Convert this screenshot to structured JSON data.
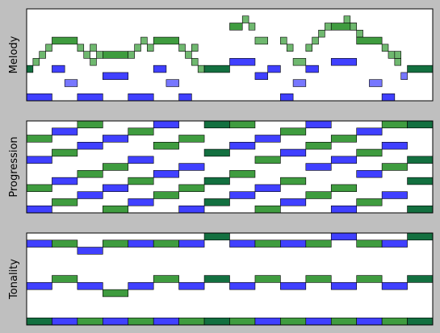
{
  "chart_data": [
    {
      "type": "pianoroll",
      "ylabel": "Melody",
      "xlim": [
        0,
        32
      ],
      "ylim": [
        0,
        13
      ],
      "notes": [
        {
          "x": 0,
          "w": 2,
          "p": 0,
          "c": "blue"
        },
        {
          "x": 0,
          "w": 0.5,
          "p": 4,
          "c": "darkgreen"
        },
        {
          "x": 0.5,
          "w": 0.5,
          "p": 5,
          "c": "lightgreen"
        },
        {
          "x": 1,
          "w": 0.5,
          "p": 6,
          "c": "lightgreen"
        },
        {
          "x": 1.5,
          "w": 0.5,
          "p": 7,
          "c": "lightgreen"
        },
        {
          "x": 2,
          "w": 2,
          "p": 8,
          "c": "green"
        },
        {
          "x": 2,
          "w": 1,
          "p": 4,
          "c": "blue"
        },
        {
          "x": 3,
          "w": 1,
          "p": 2,
          "c": "lightblue"
        },
        {
          "x": 4,
          "w": 2,
          "p": 0,
          "c": "blue"
        },
        {
          "x": 4,
          "w": 0.5,
          "p": 7,
          "c": "lightgreen"
        },
        {
          "x": 4.5,
          "w": 0.5,
          "p": 6,
          "c": "lightgreen"
        },
        {
          "x": 5,
          "w": 0.5,
          "p": 5,
          "c": "lightgreen"
        },
        {
          "x": 5,
          "w": 0.5,
          "p": 7,
          "c": "lightgreen"
        },
        {
          "x": 5.5,
          "w": 0.5,
          "p": 6,
          "c": "lightgreen"
        },
        {
          "x": 6,
          "w": 2,
          "p": 6,
          "c": "green"
        },
        {
          "x": 6,
          "w": 2,
          "p": 3,
          "c": "blue"
        },
        {
          "x": 8,
          "w": 2,
          "p": 0,
          "c": "blue"
        },
        {
          "x": 8,
          "w": 0.5,
          "p": 6,
          "c": "lightgreen"
        },
        {
          "x": 8.5,
          "w": 0.5,
          "p": 7,
          "c": "lightgreen"
        },
        {
          "x": 9,
          "w": 0.5,
          "p": 8,
          "c": "lightgreen"
        },
        {
          "x": 9.5,
          "w": 0.5,
          "p": 7,
          "c": "lightgreen"
        },
        {
          "x": 10,
          "w": 2,
          "p": 8,
          "c": "green"
        },
        {
          "x": 10,
          "w": 1,
          "p": 4,
          "c": "blue"
        },
        {
          "x": 11,
          "w": 1,
          "p": 2,
          "c": "lightblue"
        },
        {
          "x": 12,
          "w": 1,
          "p": 0,
          "c": "blue"
        },
        {
          "x": 12,
          "w": 0.5,
          "p": 7,
          "c": "lightgreen"
        },
        {
          "x": 12.5,
          "w": 0.5,
          "p": 6,
          "c": "lightgreen"
        },
        {
          "x": 13,
          "w": 0.5,
          "p": 5,
          "c": "lightgreen"
        },
        {
          "x": 13,
          "w": 0.5,
          "p": 7,
          "c": "lightgreen"
        },
        {
          "x": 13.5,
          "w": 0.5,
          "p": 4,
          "c": "lightgreen"
        },
        {
          "x": 14,
          "w": 2,
          "p": 4,
          "c": "darkgreen"
        },
        {
          "x": 16,
          "w": 2,
          "p": 5,
          "c": "blue"
        },
        {
          "x": 16,
          "w": 1,
          "p": 10,
          "c": "green"
        },
        {
          "x": 17,
          "w": 0.5,
          "p": 11,
          "c": "lightgreen"
        },
        {
          "x": 17.5,
          "w": 0.5,
          "p": 10,
          "c": "lightgreen"
        },
        {
          "x": 18,
          "w": 1,
          "p": 8,
          "c": "lightgreen"
        },
        {
          "x": 18,
          "w": 1,
          "p": 3,
          "c": "blue"
        },
        {
          "x": 19,
          "w": 1,
          "p": 4,
          "c": "blue"
        },
        {
          "x": 20,
          "w": 1,
          "p": 0,
          "c": "blue"
        },
        {
          "x": 20,
          "w": 0.5,
          "p": 8,
          "c": "lightgreen"
        },
        {
          "x": 20.5,
          "w": 0.5,
          "p": 7,
          "c": "lightgreen"
        },
        {
          "x": 21,
          "w": 1,
          "p": 5,
          "c": "lightgreen"
        },
        {
          "x": 21,
          "w": 1,
          "p": 2,
          "c": "lightblue"
        },
        {
          "x": 22,
          "w": 1,
          "p": 4,
          "c": "blue"
        },
        {
          "x": 22,
          "w": 0.5,
          "p": 7,
          "c": "lightgreen"
        },
        {
          "x": 22.5,
          "w": 0.5,
          "p": 8,
          "c": "lightgreen"
        },
        {
          "x": 23,
          "w": 0.5,
          "p": 9,
          "c": "lightgreen"
        },
        {
          "x": 23.5,
          "w": 0.5,
          "p": 10,
          "c": "lightgreen"
        },
        {
          "x": 24,
          "w": 2,
          "p": 10,
          "c": "green"
        },
        {
          "x": 24,
          "w": 2,
          "p": 5,
          "c": "blue"
        },
        {
          "x": 25,
          "w": 0.5,
          "p": 11,
          "c": "lightgreen"
        },
        {
          "x": 25.5,
          "w": 0.5,
          "p": 10,
          "c": "lightgreen"
        },
        {
          "x": 26,
          "w": 0.5,
          "p": 9,
          "c": "lightgreen"
        },
        {
          "x": 26,
          "w": 2,
          "p": 8,
          "c": "green"
        },
        {
          "x": 27,
          "w": 1,
          "p": 2,
          "c": "lightblue"
        },
        {
          "x": 28,
          "w": 1,
          "p": 0,
          "c": "blue"
        },
        {
          "x": 28,
          "w": 0.5,
          "p": 7,
          "c": "lightgreen"
        },
        {
          "x": 28.5,
          "w": 0.5,
          "p": 6,
          "c": "lightgreen"
        },
        {
          "x": 29,
          "w": 0.5,
          "p": 5,
          "c": "lightgreen"
        },
        {
          "x": 29,
          "w": 0.5,
          "p": 6,
          "c": "lightgreen"
        },
        {
          "x": 29.5,
          "w": 0.5,
          "p": 3,
          "c": "lightblue"
        },
        {
          "x": 30,
          "w": 2,
          "p": 4,
          "c": "darkgreen"
        }
      ]
    },
    {
      "type": "pianoroll",
      "ylabel": "Progression",
      "xlim": [
        0,
        32
      ],
      "ylim": [
        0,
        13
      ],
      "notes": [
        {
          "x": 0,
          "w": 2,
          "p": 0,
          "c": "blue"
        },
        {
          "x": 0,
          "w": 2,
          "p": 3,
          "c": "green"
        },
        {
          "x": 0,
          "w": 2,
          "p": 7,
          "c": "blue"
        },
        {
          "x": 0,
          "w": 2,
          "p": 10,
          "c": "green"
        },
        {
          "x": 2,
          "w": 2,
          "p": 1,
          "c": "green"
        },
        {
          "x": 2,
          "w": 2,
          "p": 4,
          "c": "blue"
        },
        {
          "x": 2,
          "w": 2,
          "p": 8,
          "c": "green"
        },
        {
          "x": 2,
          "w": 2,
          "p": 11,
          "c": "blue"
        },
        {
          "x": 4,
          "w": 2,
          "p": 2,
          "c": "blue"
        },
        {
          "x": 4,
          "w": 2,
          "p": 5,
          "c": "green"
        },
        {
          "x": 4,
          "w": 2,
          "p": 9,
          "c": "blue"
        },
        {
          "x": 4,
          "w": 2,
          "p": 12,
          "c": "green"
        },
        {
          "x": 6,
          "w": 2,
          "p": 0,
          "c": "green"
        },
        {
          "x": 6,
          "w": 2,
          "p": 3,
          "c": "blue"
        },
        {
          "x": 6,
          "w": 2,
          "p": 6,
          "c": "green"
        },
        {
          "x": 6,
          "w": 2,
          "p": 10,
          "c": "blue"
        },
        {
          "x": 8,
          "w": 2,
          "p": 1,
          "c": "blue"
        },
        {
          "x": 8,
          "w": 2,
          "p": 4,
          "c": "green"
        },
        {
          "x": 8,
          "w": 2,
          "p": 7,
          "c": "blue"
        },
        {
          "x": 8,
          "w": 2,
          "p": 11,
          "c": "green"
        },
        {
          "x": 10,
          "w": 2,
          "p": 2,
          "c": "green"
        },
        {
          "x": 10,
          "w": 2,
          "p": 5,
          "c": "blue"
        },
        {
          "x": 10,
          "w": 2,
          "p": 9,
          "c": "green"
        },
        {
          "x": 10,
          "w": 2,
          "p": 12,
          "c": "blue"
        },
        {
          "x": 12,
          "w": 2,
          "p": 0,
          "c": "blue"
        },
        {
          "x": 12,
          "w": 2,
          "p": 3,
          "c": "green"
        },
        {
          "x": 12,
          "w": 2,
          "p": 6,
          "c": "blue"
        },
        {
          "x": 12,
          "w": 2,
          "p": 10,
          "c": "green"
        },
        {
          "x": 14,
          "w": 2,
          "p": 1,
          "c": "darkgreen"
        },
        {
          "x": 14,
          "w": 2,
          "p": 4,
          "c": "darkgreen"
        },
        {
          "x": 14,
          "w": 2,
          "p": 8,
          "c": "darkgreen"
        },
        {
          "x": 14,
          "w": 2,
          "p": 12,
          "c": "darkgreen"
        },
        {
          "x": 16,
          "w": 2,
          "p": 2,
          "c": "blue"
        },
        {
          "x": 16,
          "w": 2,
          "p": 5,
          "c": "green"
        },
        {
          "x": 16,
          "w": 2,
          "p": 9,
          "c": "blue"
        },
        {
          "x": 16,
          "w": 2,
          "p": 12,
          "c": "green"
        },
        {
          "x": 18,
          "w": 2,
          "p": 0,
          "c": "green"
        },
        {
          "x": 18,
          "w": 2,
          "p": 3,
          "c": "blue"
        },
        {
          "x": 18,
          "w": 2,
          "p": 7,
          "c": "green"
        },
        {
          "x": 18,
          "w": 2,
          "p": 10,
          "c": "blue"
        },
        {
          "x": 20,
          "w": 2,
          "p": 1,
          "c": "blue"
        },
        {
          "x": 20,
          "w": 2,
          "p": 4,
          "c": "green"
        },
        {
          "x": 20,
          "w": 2,
          "p": 8,
          "c": "blue"
        },
        {
          "x": 20,
          "w": 2,
          "p": 11,
          "c": "green"
        },
        {
          "x": 22,
          "w": 2,
          "p": 2,
          "c": "green"
        },
        {
          "x": 22,
          "w": 2,
          "p": 6,
          "c": "blue"
        },
        {
          "x": 22,
          "w": 2,
          "p": 9,
          "c": "green"
        },
        {
          "x": 22,
          "w": 2,
          "p": 12,
          "c": "blue"
        },
        {
          "x": 24,
          "w": 2,
          "p": 0,
          "c": "blue"
        },
        {
          "x": 24,
          "w": 2,
          "p": 3,
          "c": "green"
        },
        {
          "x": 24,
          "w": 2,
          "p": 7,
          "c": "blue"
        },
        {
          "x": 24,
          "w": 2,
          "p": 10,
          "c": "green"
        },
        {
          "x": 26,
          "w": 2,
          "p": 1,
          "c": "green"
        },
        {
          "x": 26,
          "w": 2,
          "p": 5,
          "c": "blue"
        },
        {
          "x": 26,
          "w": 2,
          "p": 8,
          "c": "green"
        },
        {
          "x": 26,
          "w": 2,
          "p": 11,
          "c": "blue"
        },
        {
          "x": 28,
          "w": 2,
          "p": 2,
          "c": "blue"
        },
        {
          "x": 28,
          "w": 2,
          "p": 6,
          "c": "green"
        },
        {
          "x": 28,
          "w": 2,
          "p": 9,
          "c": "blue"
        },
        {
          "x": 28,
          "w": 2,
          "p": 12,
          "c": "green"
        },
        {
          "x": 30,
          "w": 2,
          "p": 0,
          "c": "darkgreen"
        },
        {
          "x": 30,
          "w": 2,
          "p": 4,
          "c": "darkgreen"
        },
        {
          "x": 30,
          "w": 2,
          "p": 7,
          "c": "darkgreen"
        },
        {
          "x": 30,
          "w": 2,
          "p": 12,
          "c": "darkgreen"
        }
      ]
    },
    {
      "type": "pianoroll",
      "ylabel": "Tonality",
      "xlim": [
        0,
        32
      ],
      "ylim": [
        0,
        13
      ],
      "notes": [
        {
          "x": 0,
          "w": 2,
          "p": 11,
          "c": "blue"
        },
        {
          "x": 0,
          "w": 2,
          "p": 5,
          "c": "blue"
        },
        {
          "x": 0,
          "w": 2,
          "p": 0,
          "c": "darkgreen"
        },
        {
          "x": 2,
          "w": 2,
          "p": 11,
          "c": "green"
        },
        {
          "x": 2,
          "w": 2,
          "p": 6,
          "c": "green"
        },
        {
          "x": 2,
          "w": 2,
          "p": 0,
          "c": "blue"
        },
        {
          "x": 4,
          "w": 2,
          "p": 10,
          "c": "blue"
        },
        {
          "x": 4,
          "w": 2,
          "p": 5,
          "c": "blue"
        },
        {
          "x": 4,
          "w": 2,
          "p": 0,
          "c": "green"
        },
        {
          "x": 6,
          "w": 2,
          "p": 11,
          "c": "green"
        },
        {
          "x": 6,
          "w": 2,
          "p": 4,
          "c": "green"
        },
        {
          "x": 6,
          "w": 2,
          "p": 0,
          "c": "blue"
        },
        {
          "x": 8,
          "w": 2,
          "p": 11,
          "c": "blue"
        },
        {
          "x": 8,
          "w": 2,
          "p": 5,
          "c": "blue"
        },
        {
          "x": 8,
          "w": 2,
          "p": 0,
          "c": "green"
        },
        {
          "x": 10,
          "w": 2,
          "p": 11,
          "c": "green"
        },
        {
          "x": 10,
          "w": 2,
          "p": 6,
          "c": "green"
        },
        {
          "x": 10,
          "w": 2,
          "p": 0,
          "c": "blue"
        },
        {
          "x": 12,
          "w": 2,
          "p": 11,
          "c": "blue"
        },
        {
          "x": 12,
          "w": 2,
          "p": 5,
          "c": "blue"
        },
        {
          "x": 12,
          "w": 2,
          "p": 0,
          "c": "green"
        },
        {
          "x": 14,
          "w": 2,
          "p": 12,
          "c": "darkgreen"
        },
        {
          "x": 14,
          "w": 2,
          "p": 6,
          "c": "darkgreen"
        },
        {
          "x": 14,
          "w": 2,
          "p": 0,
          "c": "darkgreen"
        },
        {
          "x": 16,
          "w": 2,
          "p": 11,
          "c": "blue"
        },
        {
          "x": 16,
          "w": 2,
          "p": 5,
          "c": "blue"
        },
        {
          "x": 16,
          "w": 2,
          "p": 0,
          "c": "green"
        },
        {
          "x": 18,
          "w": 2,
          "p": 11,
          "c": "green"
        },
        {
          "x": 18,
          "w": 2,
          "p": 6,
          "c": "green"
        },
        {
          "x": 18,
          "w": 2,
          "p": 0,
          "c": "blue"
        },
        {
          "x": 20,
          "w": 2,
          "p": 11,
          "c": "blue"
        },
        {
          "x": 20,
          "w": 2,
          "p": 5,
          "c": "blue"
        },
        {
          "x": 20,
          "w": 2,
          "p": 0,
          "c": "green"
        },
        {
          "x": 22,
          "w": 2,
          "p": 11,
          "c": "green"
        },
        {
          "x": 22,
          "w": 2,
          "p": 6,
          "c": "green"
        },
        {
          "x": 22,
          "w": 2,
          "p": 0,
          "c": "blue"
        },
        {
          "x": 24,
          "w": 2,
          "p": 12,
          "c": "blue"
        },
        {
          "x": 24,
          "w": 2,
          "p": 5,
          "c": "blue"
        },
        {
          "x": 24,
          "w": 2,
          "p": 0,
          "c": "green"
        },
        {
          "x": 26,
          "w": 2,
          "p": 11,
          "c": "green"
        },
        {
          "x": 26,
          "w": 2,
          "p": 6,
          "c": "green"
        },
        {
          "x": 26,
          "w": 2,
          "p": 0,
          "c": "blue"
        },
        {
          "x": 28,
          "w": 2,
          "p": 11,
          "c": "blue"
        },
        {
          "x": 28,
          "w": 2,
          "p": 5,
          "c": "blue"
        },
        {
          "x": 28,
          "w": 2,
          "p": 0,
          "c": "green"
        },
        {
          "x": 30,
          "w": 2,
          "p": 12,
          "c": "darkgreen"
        },
        {
          "x": 30,
          "w": 2,
          "p": 6,
          "c": "darkgreen"
        },
        {
          "x": 30,
          "w": 2,
          "p": 0,
          "c": "darkgreen"
        }
      ]
    }
  ],
  "colors": {
    "blue": "#4040ff",
    "lightblue": "#7777ff",
    "green": "#3f9c3f",
    "lightgreen": "#6fb86f",
    "darkgreen": "#137040",
    "background": "#bfbfbf"
  }
}
